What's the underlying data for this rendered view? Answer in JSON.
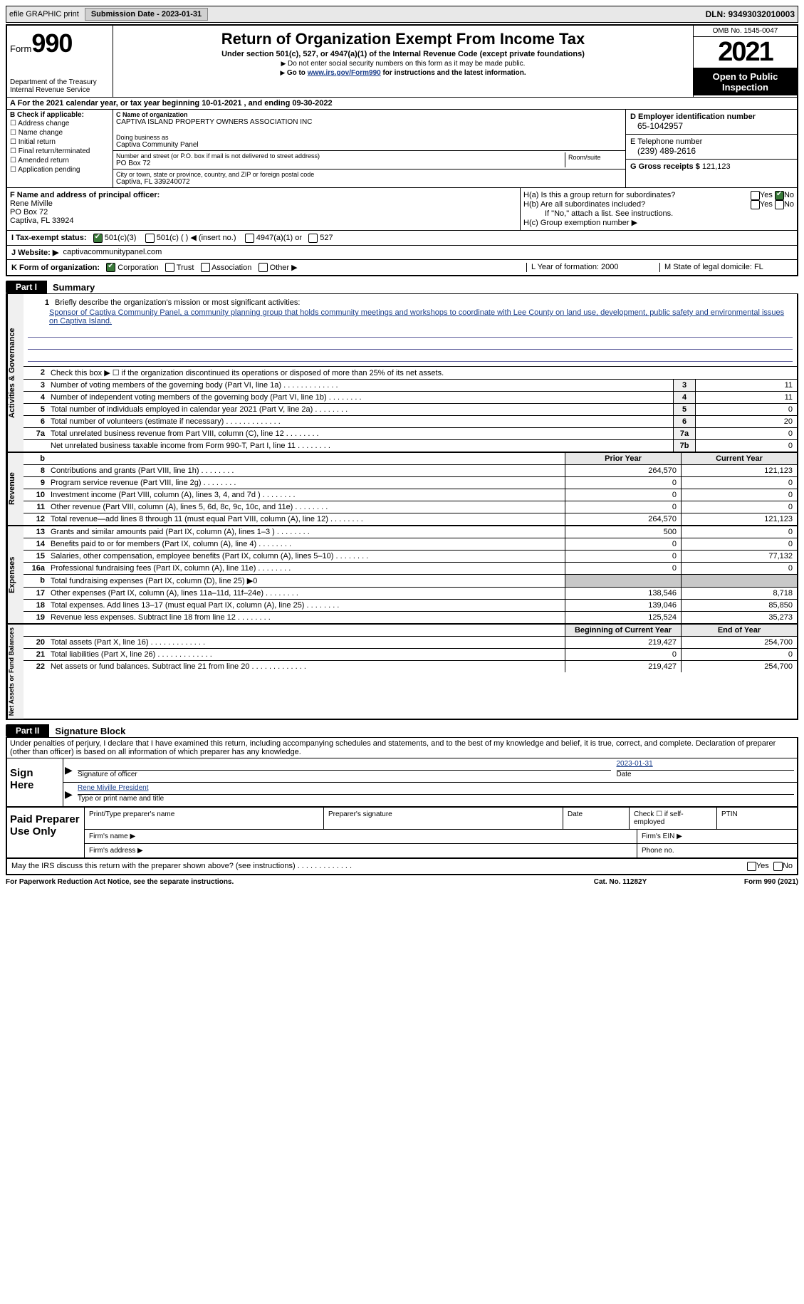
{
  "topbar": {
    "efile": "efile GRAPHIC print",
    "submission": "Submission Date - 2023-01-31",
    "dln": "DLN: 93493032010003"
  },
  "header": {
    "form_label": "Form",
    "form_number": "990",
    "dept": "Department of the Treasury",
    "irs": "Internal Revenue Service",
    "title": "Return of Organization Exempt From Income Tax",
    "subtitle": "Under section 501(c), 527, or 4947(a)(1) of the Internal Revenue Code (except private foundations)",
    "note1": "Do not enter social security numbers on this form as it may be made public.",
    "note2_pre": "Go to ",
    "note2_link": "www.irs.gov/Form990",
    "note2_post": " for instructions and the latest information.",
    "omb": "OMB No. 1545-0047",
    "year": "2021",
    "open": "Open to Public Inspection"
  },
  "calendar": "A For the 2021 calendar year, or tax year beginning 10-01-2021    , and ending 09-30-2022",
  "checkboxes": {
    "label": "B Check if applicable:",
    "items": [
      "Address change",
      "Name change",
      "Initial return",
      "Final return/terminated",
      "Amended return",
      "Application pending"
    ]
  },
  "name": {
    "label_c": "C Name of organization",
    "org": "CAPTIVA ISLAND PROPERTY OWNERS ASSOCIATION INC",
    "dba_label": "Doing business as",
    "dba": "Captiva Community Panel",
    "street_label": "Number and street (or P.O. box if mail is not delivered to street address)",
    "room_label": "Room/suite",
    "street": "PO Box 72",
    "city_label": "City or town, state or province, country, and ZIP or foreign postal code",
    "city": "Captiva, FL  339240072"
  },
  "right": {
    "d_label": "D Employer identification number",
    "d_val": "65-1042957",
    "e_label": "E Telephone number",
    "e_val": "(239) 489-2616",
    "g_label": "G Gross receipts $",
    "g_val": "121,123"
  },
  "officer": {
    "f_label": "F Name and address of principal officer:",
    "name": "Rene Miville",
    "addr1": "PO Box 72",
    "addr2": "Captiva, FL  33924"
  },
  "h": {
    "ha": "H(a)  Is this a group return for subordinates?",
    "hb": "H(b)  Are all subordinates included?",
    "hb_note": "If \"No,\" attach a list. See instructions.",
    "hc": "H(c)  Group exemption number ▶",
    "yes": "Yes",
    "no": "No"
  },
  "status": {
    "i": "I   Tax-exempt status:",
    "opt1": "501(c)(3)",
    "opt2": "501(c) (   ) ◀ (insert no.)",
    "opt3": "4947(a)(1) or",
    "opt4": "527"
  },
  "website": {
    "j": "J   Website: ▶",
    "val": "captivacommunitypanel.com"
  },
  "k": {
    "label": "K Form of organization:",
    "corp": "Corporation",
    "trust": "Trust",
    "assoc": "Association",
    "other": "Other ▶",
    "l": "L Year of formation: 2000",
    "m": "M State of legal domicile: FL"
  },
  "part1": {
    "tab": "Part I",
    "title": "Summary",
    "mission_label": "Briefly describe the organization's mission or most significant activities:",
    "mission": "Sponsor of Captiva Community Panel, a community planning group that holds community meetings and workshops to coordinate with Lee County on land use, development, public safety and environmental issues on Captiva Island.",
    "line2": "Check this box ▶ ☐  if the organization discontinued its operations or disposed of more than 25% of its net assets.",
    "rows": {
      "3": {
        "desc": "Number of voting members of the governing body (Part VI, line 1a)",
        "val": "11"
      },
      "4": {
        "desc": "Number of independent voting members of the governing body (Part VI, line 1b)",
        "val": "11"
      },
      "5": {
        "desc": "Total number of individuals employed in calendar year 2021 (Part V, line 2a)",
        "val": "0"
      },
      "6": {
        "desc": "Total number of volunteers (estimate if necessary)",
        "val": "20"
      },
      "7a": {
        "desc": "Total unrelated business revenue from Part VIII, column (C), line 12",
        "val": "0"
      },
      "7b": {
        "desc": "Net unrelated business taxable income from Form 990-T, Part I, line 11",
        "val": "0"
      }
    },
    "col_prior": "Prior Year",
    "col_current": "Current Year",
    "revenue": [
      {
        "n": "8",
        "desc": "Contributions and grants (Part VIII, line 1h)",
        "p": "264,570",
        "c": "121,123"
      },
      {
        "n": "9",
        "desc": "Program service revenue (Part VIII, line 2g)",
        "p": "0",
        "c": "0"
      },
      {
        "n": "10",
        "desc": "Investment income (Part VIII, column (A), lines 3, 4, and 7d )",
        "p": "0",
        "c": "0"
      },
      {
        "n": "11",
        "desc": "Other revenue (Part VIII, column (A), lines 5, 6d, 8c, 9c, 10c, and 11e)",
        "p": "0",
        "c": "0"
      },
      {
        "n": "12",
        "desc": "Total revenue—add lines 8 through 11 (must equal Part VIII, column (A), line 12)",
        "p": "264,570",
        "c": "121,123"
      }
    ],
    "expenses": [
      {
        "n": "13",
        "desc": "Grants and similar amounts paid (Part IX, column (A), lines 1–3 )",
        "p": "500",
        "c": "0"
      },
      {
        "n": "14",
        "desc": "Benefits paid to or for members (Part IX, column (A), line 4)",
        "p": "0",
        "c": "0"
      },
      {
        "n": "15",
        "desc": "Salaries, other compensation, employee benefits (Part IX, column (A), lines 5–10)",
        "p": "0",
        "c": "77,132"
      },
      {
        "n": "16a",
        "desc": "Professional fundraising fees (Part IX, column (A), line 11e)",
        "p": "0",
        "c": "0"
      },
      {
        "n": "b",
        "desc": "Total fundraising expenses (Part IX, column (D), line 25) ▶0",
        "p": "",
        "c": "",
        "gray": true
      },
      {
        "n": "17",
        "desc": "Other expenses (Part IX, column (A), lines 11a–11d, 11f–24e)",
        "p": "138,546",
        "c": "8,718"
      },
      {
        "n": "18",
        "desc": "Total expenses. Add lines 13–17 (must equal Part IX, column (A), line 25)",
        "p": "139,046",
        "c": "85,850"
      },
      {
        "n": "19",
        "desc": "Revenue less expenses. Subtract line 18 from line 12",
        "p": "125,524",
        "c": "35,273"
      }
    ],
    "col_begin": "Beginning of Current Year",
    "col_end": "End of Year",
    "netassets": [
      {
        "n": "20",
        "desc": "Total assets (Part X, line 16)",
        "p": "219,427",
        "c": "254,700"
      },
      {
        "n": "21",
        "desc": "Total liabilities (Part X, line 26)",
        "p": "0",
        "c": "0"
      },
      {
        "n": "22",
        "desc": "Net assets or fund balances. Subtract line 21 from line 20",
        "p": "219,427",
        "c": "254,700"
      }
    ],
    "vtabs": {
      "ag": "Activities & Governance",
      "rev": "Revenue",
      "exp": "Expenses",
      "na": "Net Assets or\nFund Balances"
    }
  },
  "part2": {
    "tab": "Part II",
    "title": "Signature Block",
    "declaration": "Under penalties of perjury, I declare that I have examined this return, including accompanying schedules and statements, and to the best of my knowledge and belief, it is true, correct, and complete. Declaration of preparer (other than officer) is based on all information of which preparer has any knowledge.",
    "sign_here": "Sign Here",
    "sig_officer": "Signature of officer",
    "date": "Date",
    "date_val": "2023-01-31",
    "name_title": "Rene Miville  President",
    "type_name": "Type or print name and title",
    "paid": "Paid Preparer Use Only",
    "prep_name": "Print/Type preparer's name",
    "prep_sig": "Preparer's signature",
    "prep_date": "Date",
    "prep_check": "Check ☐ if self-employed",
    "ptin": "PTIN",
    "firm_name": "Firm's name    ▶",
    "firm_ein": "Firm's EIN ▶",
    "firm_addr": "Firm's address ▶",
    "phone": "Phone no.",
    "discuss": "May the IRS discuss this return with the preparer shown above? (see instructions)"
  },
  "footer": {
    "paperwork": "For Paperwork Reduction Act Notice, see the separate instructions.",
    "cat": "Cat. No. 11282Y",
    "form": "Form 990 (2021)"
  }
}
